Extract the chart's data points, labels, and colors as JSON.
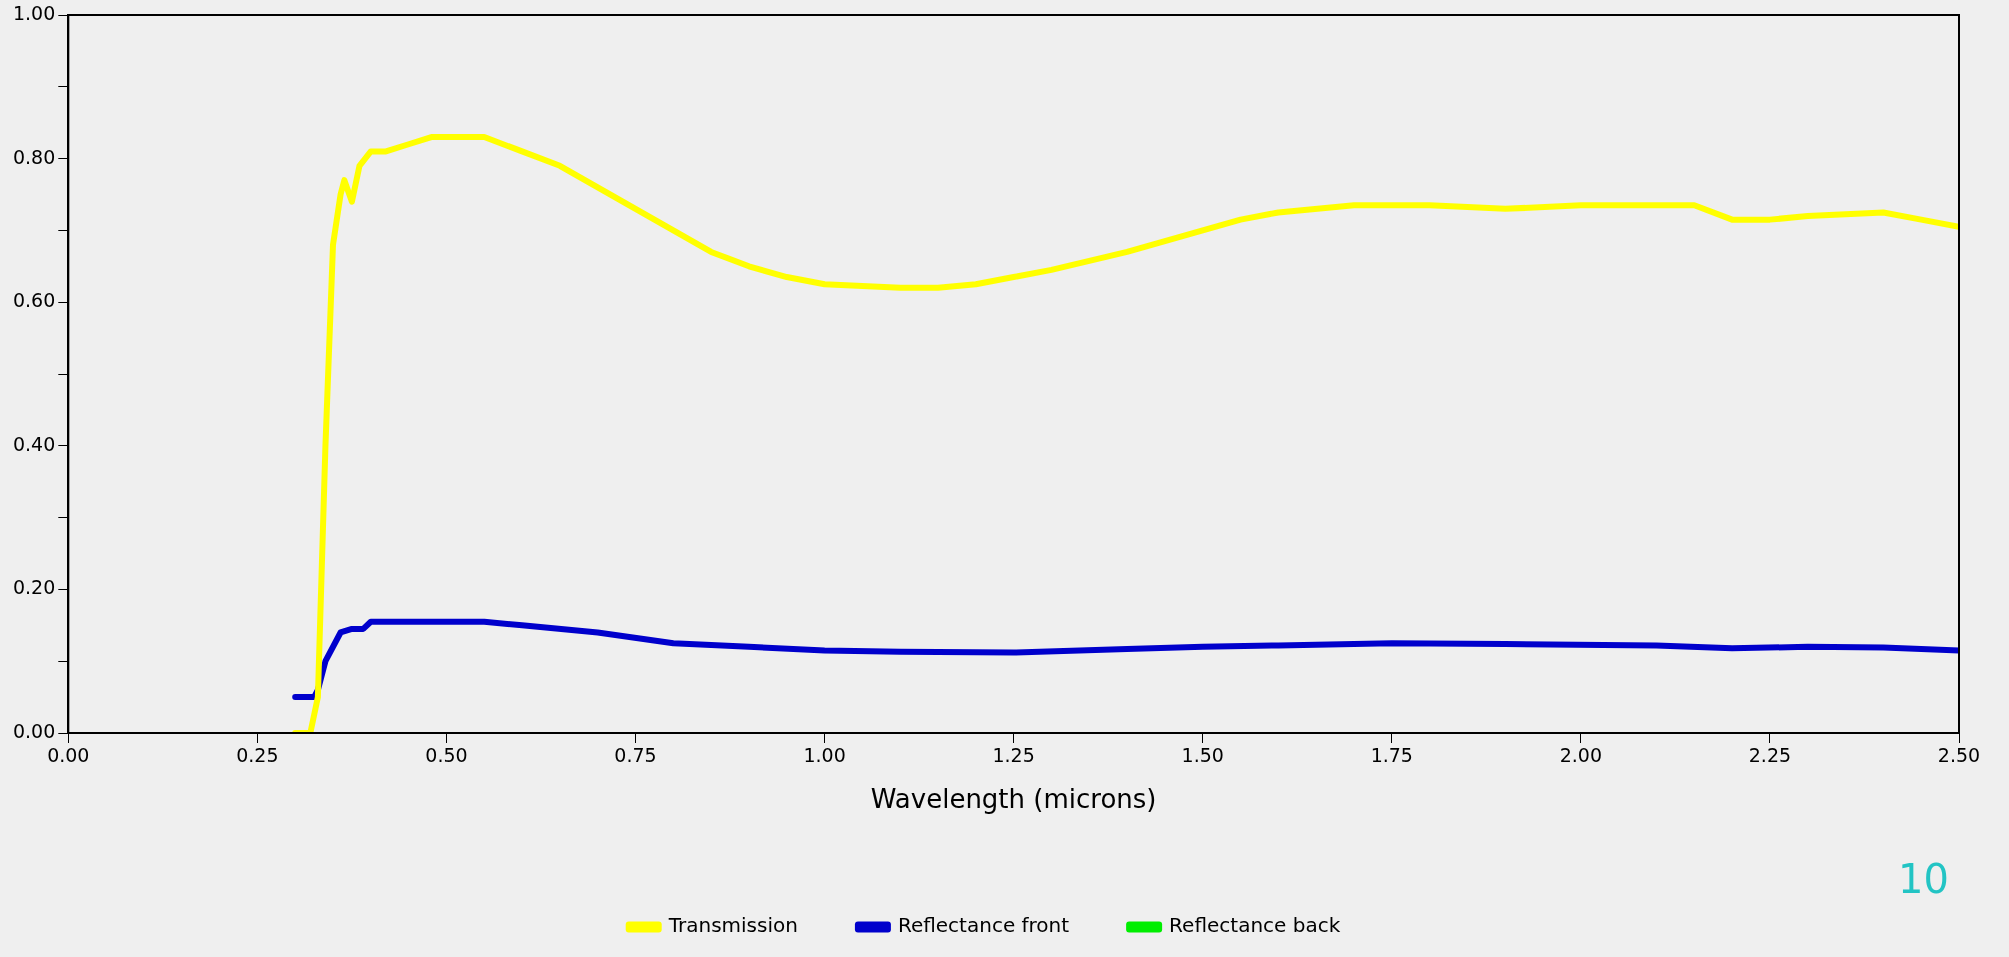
{
  "chart_data": {
    "type": "line",
    "xlabel": "Wavelength (microns)",
    "xlim": [
      0,
      2.5
    ],
    "ylim": [
      0,
      1
    ],
    "xticks": [
      {
        "value": 0,
        "label": "0.00"
      },
      {
        "value": 0.25,
        "label": "0.25"
      },
      {
        "value": 0.5,
        "label": "0.50"
      },
      {
        "value": 0.75,
        "label": "0.75"
      },
      {
        "value": 1,
        "label": "1.00"
      },
      {
        "value": 1.25,
        "label": "1.25"
      },
      {
        "value": 1.5,
        "label": "1.50"
      },
      {
        "value": 1.75,
        "label": "1.75"
      },
      {
        "value": 2,
        "label": "2.00"
      },
      {
        "value": 2.25,
        "label": "2.25"
      },
      {
        "value": 2.5,
        "label": "2.50"
      }
    ],
    "yticks": [
      {
        "value": 0,
        "label": "0.00"
      },
      {
        "value": 0.1,
        "label": null
      },
      {
        "value": 0.2,
        "label": "0.20"
      },
      {
        "value": 0.3,
        "label": null
      },
      {
        "value": 0.4,
        "label": "0.40"
      },
      {
        "value": 0.5,
        "label": null
      },
      {
        "value": 0.6,
        "label": "0.60"
      },
      {
        "value": 0.7,
        "label": null
      },
      {
        "value": 0.8,
        "label": "0.80"
      },
      {
        "value": 0.9,
        "label": null
      },
      {
        "value": 1,
        "label": "1.00"
      }
    ],
    "grid": false,
    "legend": "bottom",
    "marker": "none",
    "line_style": "solid",
    "annotations": [
      "10"
    ],
    "series": [
      {
        "name": "Transmission",
        "color": "#ffff00",
        "x": [
          0.3,
          0.32,
          0.33,
          0.34,
          0.35,
          0.36,
          0.365,
          0.375,
          0.385,
          0.4,
          0.42,
          0.45,
          0.48,
          0.52,
          0.55,
          0.6,
          0.65,
          0.7,
          0.75,
          0.8,
          0.85,
          0.9,
          0.95,
          1.0,
          1.1,
          1.15,
          1.2,
          1.25,
          1.3,
          1.4,
          1.5,
          1.55,
          1.6,
          1.7,
          1.8,
          1.9,
          2.0,
          2.1,
          2.15,
          2.2,
          2.25,
          2.3,
          2.4,
          2.45,
          2.5
        ],
        "values": [
          0.0,
          0.0,
          0.05,
          0.4,
          0.68,
          0.75,
          0.77,
          0.74,
          0.79,
          0.81,
          0.81,
          0.82,
          0.83,
          0.83,
          0.83,
          0.81,
          0.79,
          0.76,
          0.73,
          0.7,
          0.67,
          0.65,
          0.635,
          0.625,
          0.62,
          0.62,
          0.625,
          0.635,
          0.645,
          0.67,
          0.7,
          0.715,
          0.725,
          0.735,
          0.735,
          0.73,
          0.735,
          0.735,
          0.735,
          0.715,
          0.715,
          0.72,
          0.725,
          0.715,
          0.705
        ]
      },
      {
        "name": "Reflectance front",
        "color": "#0000cc",
        "x": [
          0.3,
          0.325,
          0.33,
          0.34,
          0.36,
          0.375,
          0.39,
          0.4,
          0.5,
          0.55,
          0.6,
          0.7,
          0.8,
          0.9,
          1.0,
          1.1,
          1.25,
          1.4,
          1.5,
          1.6,
          1.75,
          1.9,
          2.1,
          2.2,
          2.3,
          2.4,
          2.5
        ],
        "values": [
          0.05,
          0.05,
          0.06,
          0.1,
          0.14,
          0.145,
          0.145,
          0.155,
          0.155,
          0.155,
          0.15,
          0.14,
          0.125,
          0.12,
          0.115,
          0.113,
          0.112,
          0.117,
          0.12,
          0.122,
          0.125,
          0.124,
          0.122,
          0.118,
          0.12,
          0.119,
          0.115
        ]
      },
      {
        "name": "Reflectance back",
        "color": "#00ee00"
      }
    ]
  }
}
